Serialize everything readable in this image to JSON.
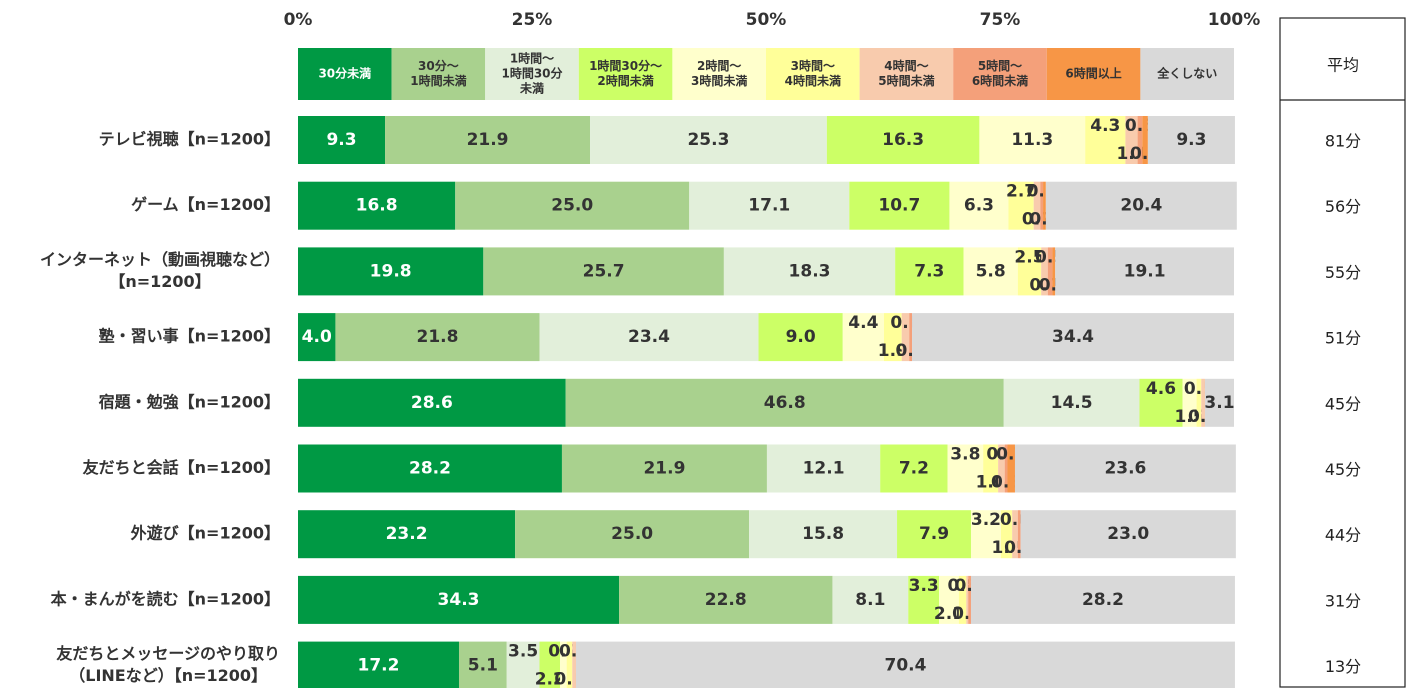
{
  "chart_data": {
    "type": "stacked-bar-horizontal",
    "categories": [
      [
        "テレビ視聴【n=1200】"
      ],
      [
        "ゲーム【n=1200】"
      ],
      [
        "インターネット（動画視聴など）",
        "【n=1200】"
      ],
      [
        "塾・習い事【n=1200】"
      ],
      [
        "宿題・勉強【n=1200】"
      ],
      [
        "友だちと会話【n=1200】"
      ],
      [
        "外遊び【n=1200】"
      ],
      [
        "本・まんがを読む【n=1200】"
      ],
      [
        "友だちとメッセージのやり取り",
        "（LINEなど）【n=1200】"
      ]
    ],
    "xlim": [
      0,
      100
    ],
    "xticks": [
      {
        "value": 0,
        "label": "0%"
      },
      {
        "value": 25,
        "label": "25%"
      },
      {
        "value": 50,
        "label": "50%"
      },
      {
        "value": 75,
        "label": "75%"
      },
      {
        "value": 100,
        "label": "100%"
      }
    ],
    "series": [
      {
        "name": [
          "30分未満"
        ],
        "color": "#009944",
        "values": [
          9.3,
          16.8,
          19.8,
          4.0,
          28.6,
          28.2,
          23.2,
          34.3,
          17.2
        ],
        "value_labels": [
          "9.3",
          "16.8",
          "19.8",
          "4.0",
          "28.6",
          "28.2",
          "23.2",
          "34.3",
          "17.2"
        ]
      },
      {
        "name": [
          "30分～",
          "1時間未満"
        ],
        "color": "#a9d18e",
        "values": [
          21.9,
          25.0,
          25.7,
          21.8,
          46.8,
          21.9,
          25.0,
          22.8,
          5.1
        ],
        "value_labels": [
          "21.9",
          "25.0",
          "25.7",
          "21.8",
          "46.8",
          "21.9",
          "25.0",
          "22.8",
          "5.1"
        ]
      },
      {
        "name": [
          "1時間～",
          "1時間30分",
          "未満"
        ],
        "color": "#e2efda",
        "values": [
          25.3,
          17.1,
          18.3,
          23.4,
          14.5,
          12.1,
          15.8,
          8.1,
          3.5
        ],
        "value_labels": [
          "25.3",
          "17.1",
          "18.3",
          "23.4",
          "14.5",
          "12.1",
          "15.8",
          "8.1",
          "3.5"
        ]
      },
      {
        "name": [
          "1時間30分～",
          "2時間未満"
        ],
        "color": "#ccff66",
        "values": [
          16.3,
          10.7,
          7.3,
          9.0,
          4.6,
          7.2,
          7.9,
          3.3,
          2.2
        ],
        "value_labels": [
          "16.3",
          "10.7",
          "7.3",
          "9.0",
          "4.6",
          "7.2",
          "7.9",
          "3.3",
          "2.2"
        ]
      },
      {
        "name": [
          "2時間～",
          "3時間未満"
        ],
        "color": "#ffffcc",
        "values": [
          11.3,
          6.3,
          5.8,
          4.4,
          1.5,
          3.8,
          3.2,
          2.1,
          0.7
        ],
        "value_labels": [
          "11.3",
          "6.3",
          "5.8",
          "4.4",
          "1.5",
          "3.8",
          "3.2",
          "2.1",
          "0.7"
        ]
      },
      {
        "name": [
          "3時間～",
          "4時間未満"
        ],
        "color": "#ffff99",
        "values": [
          4.3,
          2.7,
          2.5,
          1.9,
          0.5,
          1.6,
          1.2,
          0.8,
          0.6
        ],
        "value_labels": [
          "4.3",
          "2.7",
          "2.5",
          "1.9",
          "0.5",
          "1.6",
          "1.2",
          "0.8",
          "0.6"
        ]
      },
      {
        "name": [
          "4時間～",
          "5時間未満"
        ],
        "color": "#f8cbad",
        "values": [
          1.3,
          0.7,
          0.7,
          0.8,
          0.4,
          0.7,
          0.6,
          0.2,
          0.4
        ],
        "value_labels": [
          "1.3",
          "0.7",
          "0.7",
          "0.8",
          "0.4",
          "0.7",
          "0.6",
          "0.2",
          "0.4"
        ]
      },
      {
        "name": [
          "5時間～",
          "6時間未満"
        ],
        "color": "#f4a07a",
        "values": [
          0.5,
          0.3,
          0.5,
          0.3,
          null,
          0.3,
          0.3,
          0.3,
          null
        ],
        "value_labels": [
          "0.5",
          "0.3",
          "0.5",
          "0.3",
          null,
          "0.3",
          "0.3",
          "0.3",
          null
        ]
      },
      {
        "name": [
          "6時間以上"
        ],
        "color": "#f79646",
        "values": [
          0.6,
          0.3,
          0.3,
          null,
          null,
          0.8,
          null,
          null,
          null
        ],
        "value_labels": [
          "0.6",
          "0.3",
          "0.3",
          null,
          null,
          "0.8",
          null,
          null,
          null
        ]
      },
      {
        "name": [
          "全くしない"
        ],
        "color": "#d9d9d9",
        "values": [
          9.3,
          20.4,
          19.1,
          34.4,
          3.1,
          23.6,
          23.0,
          28.2,
          70.4
        ],
        "value_labels": [
          "9.3",
          "20.4",
          "19.1",
          "34.4",
          "3.1",
          "23.6",
          "23.0",
          "28.2",
          "70.4"
        ]
      }
    ]
  },
  "table": {
    "header": "平均",
    "values": [
      "81分",
      "56分",
      "55分",
      "51分",
      "45分",
      "45分",
      "44分",
      "31分",
      "13分"
    ]
  }
}
